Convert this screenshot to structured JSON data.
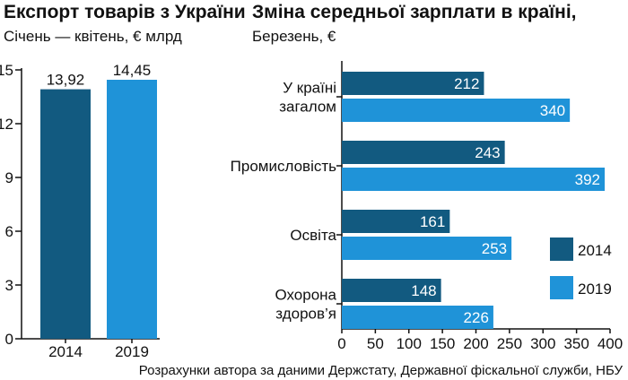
{
  "colors": {
    "y2014": "#125a80",
    "y2019": "#1f93d8",
    "axis": "#111111"
  },
  "chart_data": [
    {
      "type": "bar",
      "title": "Експорт товарів з України",
      "subtitle": "Січень — квітень, € млрд",
      "categories": [
        "2014",
        "2019"
      ],
      "values": [
        13.92,
        14.45
      ],
      "value_labels": [
        "13,92",
        "14,45"
      ],
      "ylim": [
        0,
        15
      ],
      "yticks": [
        0,
        3,
        6,
        9,
        12,
        15
      ],
      "xlabel": "",
      "ylabel": ""
    },
    {
      "type": "bar",
      "orientation": "horizontal",
      "title": "Зміна середньої зарплати в країні,",
      "subtitle": "Березень, €",
      "categories": [
        [
          "У країні",
          "загалом"
        ],
        [
          "Промисловість"
        ],
        [
          "Освіта"
        ],
        [
          "Охорона",
          "здоров’я"
        ]
      ],
      "series": [
        {
          "name": "2014",
          "values": [
            212,
            243,
            161,
            148
          ]
        },
        {
          "name": "2019",
          "values": [
            340,
            392,
            253,
            226
          ]
        }
      ],
      "xlim": [
        0,
        400
      ],
      "xticks": [
        0,
        50,
        100,
        150,
        200,
        250,
        300,
        350,
        400
      ],
      "legend": [
        "2014",
        "2019"
      ],
      "legend_position": "bottom-right"
    }
  ],
  "source": "Розрахунки автора за даними Держстату, Державної фіскальної служби, НБУ"
}
